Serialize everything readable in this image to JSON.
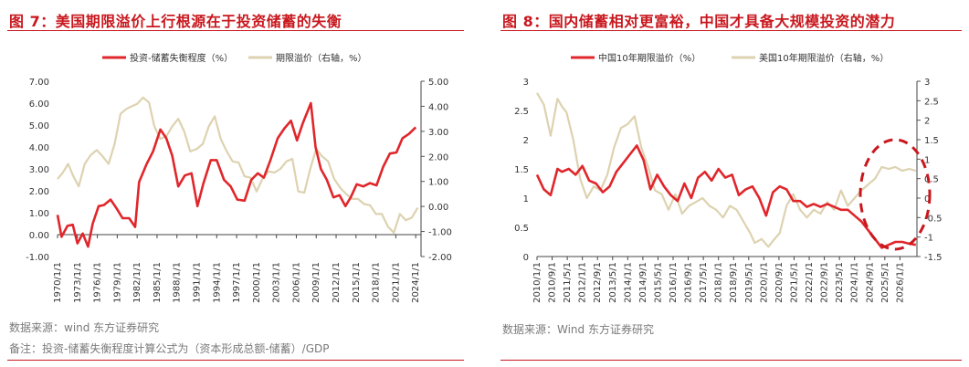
{
  "chart_data": [
    {
      "type": "line",
      "title": "图 7：美国期限溢价上行根源在于投资储蓄的失衡",
      "x_dates": [
        "1970/1/1",
        "1973/1/1",
        "1976/1/1",
        "1979/1/1",
        "1982/1/1",
        "1985/1/1",
        "1988/1/1",
        "1991/1/1",
        "1994/1/1",
        "1997/1/1",
        "2000/1/1",
        "2003/1/1",
        "2006/1/1",
        "2009/1/1",
        "2012/1/1",
        "2015/1/1",
        "2018/1/1",
        "2021/1/1",
        "2024/1/1"
      ],
      "x_range": [
        1970,
        2024.8
      ],
      "y_left": {
        "range": [
          -1,
          7
        ],
        "ticks": [
          "-1.00",
          "0.00",
          "1.00",
          "2.00",
          "3.00",
          "4.00",
          "5.00",
          "6.00",
          "7.00"
        ]
      },
      "y_right": {
        "range": [
          -2,
          5
        ],
        "ticks": [
          "-2.00",
          "-1.00",
          "0.00",
          "1.00",
          "2.00",
          "3.00",
          "4.00",
          "5.00"
        ]
      },
      "legend_position": "top",
      "series": [
        {
          "name": "投资-储蓄失衡程度（%）",
          "axis": "left",
          "color": "#e0262b",
          "x": [
            1970,
            1970.6,
            1971.5,
            1972.3,
            1973,
            1973.8,
            1974.6,
            1975.3,
            1976.2,
            1977,
            1978,
            1978.9,
            1979.8,
            1980.8,
            1981.7,
            1982.3,
            1983.4,
            1984.4,
            1985.5,
            1986.4,
            1987.3,
            1988.2,
            1989.2,
            1990.2,
            1991.1,
            1992,
            1993.1,
            1994,
            1995.1,
            1996.1,
            1997.1,
            1998.2,
            1999.2,
            2000.2,
            2001.1,
            2002.1,
            2003.2,
            2004.2,
            2005.2,
            2006.1,
            2007,
            2008.2,
            2008.9,
            2009.7,
            2010.6,
            2011.6,
            2012.5,
            2013.4,
            2014.2,
            2015.1,
            2016.1,
            2017.1,
            2018.1,
            2019.1,
            2020.1,
            2021.1,
            2022,
            2023,
            2024
          ],
          "y": [
            0.9,
            -0.1,
            0.4,
            0.45,
            -0.4,
            0.05,
            -0.55,
            0.5,
            1.3,
            1.35,
            1.6,
            1.2,
            0.75,
            0.75,
            0.35,
            2.4,
            3.2,
            3.8,
            4.8,
            4.4,
            3.6,
            2.2,
            2.7,
            2.8,
            1.3,
            2.35,
            3.4,
            3.4,
            2.5,
            2.2,
            1.6,
            1.55,
            2.5,
            2.8,
            2.6,
            3.4,
            4.4,
            4.85,
            5.2,
            4.3,
            5.1,
            6.0,
            4.0,
            3.0,
            2.5,
            1.7,
            1.8,
            1.3,
            1.7,
            2.3,
            2.2,
            2.35,
            2.25,
            3.1,
            3.7,
            3.75,
            4.4,
            4.6,
            4.9
          ]
        },
        {
          "name": "期限溢价（右轴，%）",
          "axis": "right",
          "color": "#ddd2b0",
          "x": [
            1970,
            1970.8,
            1971.6,
            1972.4,
            1973.2,
            1974.1,
            1975,
            1975.9,
            1976.8,
            1977.7,
            1978.6,
            1979.5,
            1980.4,
            1981.2,
            1982,
            1982.9,
            1983.8,
            1984.6,
            1985.5,
            1986.4,
            1987.3,
            1988.2,
            1989.1,
            1990,
            1991,
            1991.9,
            1992.8,
            1993.7,
            1994.6,
            1995.5,
            1996.4,
            1997.3,
            1998.2,
            1999.1,
            2000,
            2000.9,
            2001.8,
            2002.7,
            2003.6,
            2004.5,
            2005.4,
            2006.3,
            2007.2,
            2008.1,
            2009,
            2009.9,
            2010.8,
            2011.7,
            2012.6,
            2013.5,
            2014.4,
            2015.3,
            2016.2,
            2017.1,
            2018,
            2018.9,
            2019.8,
            2020.7,
            2021.6,
            2022.5,
            2023.4,
            2024.3
          ],
          "y": [
            1.1,
            1.35,
            1.7,
            1.2,
            0.8,
            1.7,
            2.05,
            2.25,
            2.0,
            1.7,
            2.5,
            3.7,
            3.9,
            4.0,
            4.1,
            4.35,
            4.15,
            3.2,
            2.7,
            2.8,
            3.2,
            3.5,
            3.0,
            2.2,
            2.3,
            2.5,
            3.2,
            3.6,
            2.7,
            2.2,
            1.8,
            1.75,
            1.2,
            1.15,
            0.6,
            1.1,
            1.4,
            1.35,
            1.5,
            1.8,
            1.9,
            0.6,
            0.55,
            1.5,
            2.3,
            2.0,
            1.8,
            1.1,
            0.75,
            0.5,
            0.3,
            0.3,
            0.1,
            0.05,
            -0.3,
            -0.3,
            -0.8,
            -1.05,
            -0.3,
            -0.55,
            -0.45,
            -0.05
          ]
        }
      ],
      "footer": [
        "数据来源：wind 东方证券研究",
        "备注：投资-储蓄失衡程度计算公式为（资本形成总额-储蓄）/GDP"
      ]
    },
    {
      "type": "line",
      "title": "图 8：国内储蓄相对更富裕，中国才具备大规模投资的潜力",
      "x_dates": [
        "2010/1/1",
        "2010/9/1",
        "2011/5/1",
        "2012/1/1",
        "2012/9/1",
        "2013/5/1",
        "2014/1/1",
        "2014/9/1",
        "2015/5/1",
        "2016/1/1",
        "2016/9/1",
        "2017/5/1",
        "2018/1/1",
        "2018/9/1",
        "2019/5/1",
        "2020/1/1",
        "2020/9/1",
        "2021/5/1",
        "2022/1/1",
        "2022/9/1",
        "2023/5/1",
        "2024/1/1",
        "2024/9/1",
        "2025/5/1",
        "2026/1/1"
      ],
      "x_range": [
        2010,
        2026.75
      ],
      "y_left": {
        "range": [
          0,
          3
        ],
        "ticks": [
          "0",
          "0.5",
          "1",
          "1.5",
          "2",
          "2.5",
          "3"
        ]
      },
      "y_right": {
        "range": [
          -1.5,
          3
        ],
        "ticks": [
          "-1.5",
          "-1",
          "-0.5",
          "0",
          "0.5",
          "1",
          "1.5",
          "2",
          "2.5",
          "3"
        ]
      },
      "legend_position": "top",
      "annotation": "dashed red ellipse highlighting 2024-2026",
      "series": [
        {
          "name": "中国10年期限溢价（%）",
          "axis": "left",
          "color": "#e0262b",
          "x": [
            2010,
            2010.3,
            2010.6,
            2010.9,
            2011.1,
            2011.4,
            2011.7,
            2012,
            2012.3,
            2012.6,
            2012.9,
            2013.2,
            2013.5,
            2013.8,
            2014.1,
            2014.4,
            2014.7,
            2015,
            2015.3,
            2015.6,
            2015.9,
            2016.2,
            2016.5,
            2016.8,
            2017.1,
            2017.4,
            2017.7,
            2018,
            2018.3,
            2018.6,
            2018.9,
            2019.2,
            2019.5,
            2019.8,
            2020.1,
            2020.4,
            2020.7,
            2021,
            2021.3,
            2021.6,
            2021.9,
            2022.2,
            2022.5,
            2022.8,
            2023.1,
            2023.4,
            2023.7,
            2024,
            2024.3,
            2024.6,
            2024.9,
            2025.2,
            2025.5,
            2025.8,
            2026.1,
            2026.4,
            2026.7
          ],
          "y": [
            1.4,
            1.15,
            1.05,
            1.5,
            1.45,
            1.5,
            1.4,
            1.55,
            1.3,
            1.25,
            1.1,
            1.2,
            1.45,
            1.6,
            1.75,
            1.9,
            1.65,
            1.15,
            1.4,
            1.2,
            1.05,
            0.95,
            1.25,
            1.0,
            1.35,
            1.45,
            1.3,
            1.5,
            1.35,
            1.4,
            1.05,
            1.15,
            1.2,
            1.0,
            0.7,
            1.1,
            1.2,
            1.15,
            0.95,
            0.95,
            0.85,
            0.9,
            0.85,
            0.9,
            0.85,
            0.8,
            0.8,
            0.7,
            0.6,
            0.45,
            0.3,
            0.15,
            0.2,
            0.25,
            0.25,
            0.22,
            0.2
          ]
        },
        {
          "name": "美国10年期限溢价（右轴，%）",
          "axis": "right",
          "color": "#ddd2b0",
          "x": [
            2010,
            2010.3,
            2010.6,
            2010.9,
            2011.1,
            2011.3,
            2011.6,
            2011.9,
            2012.2,
            2012.5,
            2012.8,
            2013.1,
            2013.4,
            2013.7,
            2014,
            2014.3,
            2014.6,
            2014.9,
            2015.2,
            2015.5,
            2015.8,
            2016.1,
            2016.4,
            2016.7,
            2017,
            2017.3,
            2017.6,
            2017.9,
            2018.2,
            2018.5,
            2018.8,
            2019.1,
            2019.4,
            2019.6,
            2019.9,
            2020.2,
            2020.4,
            2020.7,
            2021,
            2021.3,
            2021.6,
            2021.9,
            2022.2,
            2022.5,
            2022.8,
            2023.1,
            2023.4,
            2023.7,
            2024,
            2024.3,
            2024.6,
            2024.9,
            2025.2,
            2025.5,
            2025.8,
            2026.1,
            2026.4,
            2026.7
          ],
          "y": [
            2.7,
            2.4,
            1.6,
            2.55,
            2.35,
            2.2,
            1.5,
            0.5,
            0.0,
            0.3,
            0.2,
            0.6,
            1.3,
            1.8,
            1.9,
            2.1,
            1.3,
            0.8,
            0.2,
            0.1,
            -0.3,
            0.1,
            -0.4,
            -0.2,
            -0.1,
            0.0,
            -0.2,
            -0.3,
            -0.5,
            -0.2,
            -0.3,
            -0.6,
            -0.9,
            -1.15,
            -1.05,
            -1.25,
            -1.1,
            -0.9,
            -0.2,
            0.1,
            -0.3,
            -0.5,
            -0.3,
            -0.4,
            -0.1,
            -0.3,
            0.2,
            -0.2,
            0.0,
            0.2,
            0.35,
            0.5,
            0.8,
            0.75,
            0.8,
            0.7,
            0.75,
            0.7
          ]
        }
      ],
      "footer": [
        "数据来源：Wind 东方证券研究"
      ]
    }
  ]
}
